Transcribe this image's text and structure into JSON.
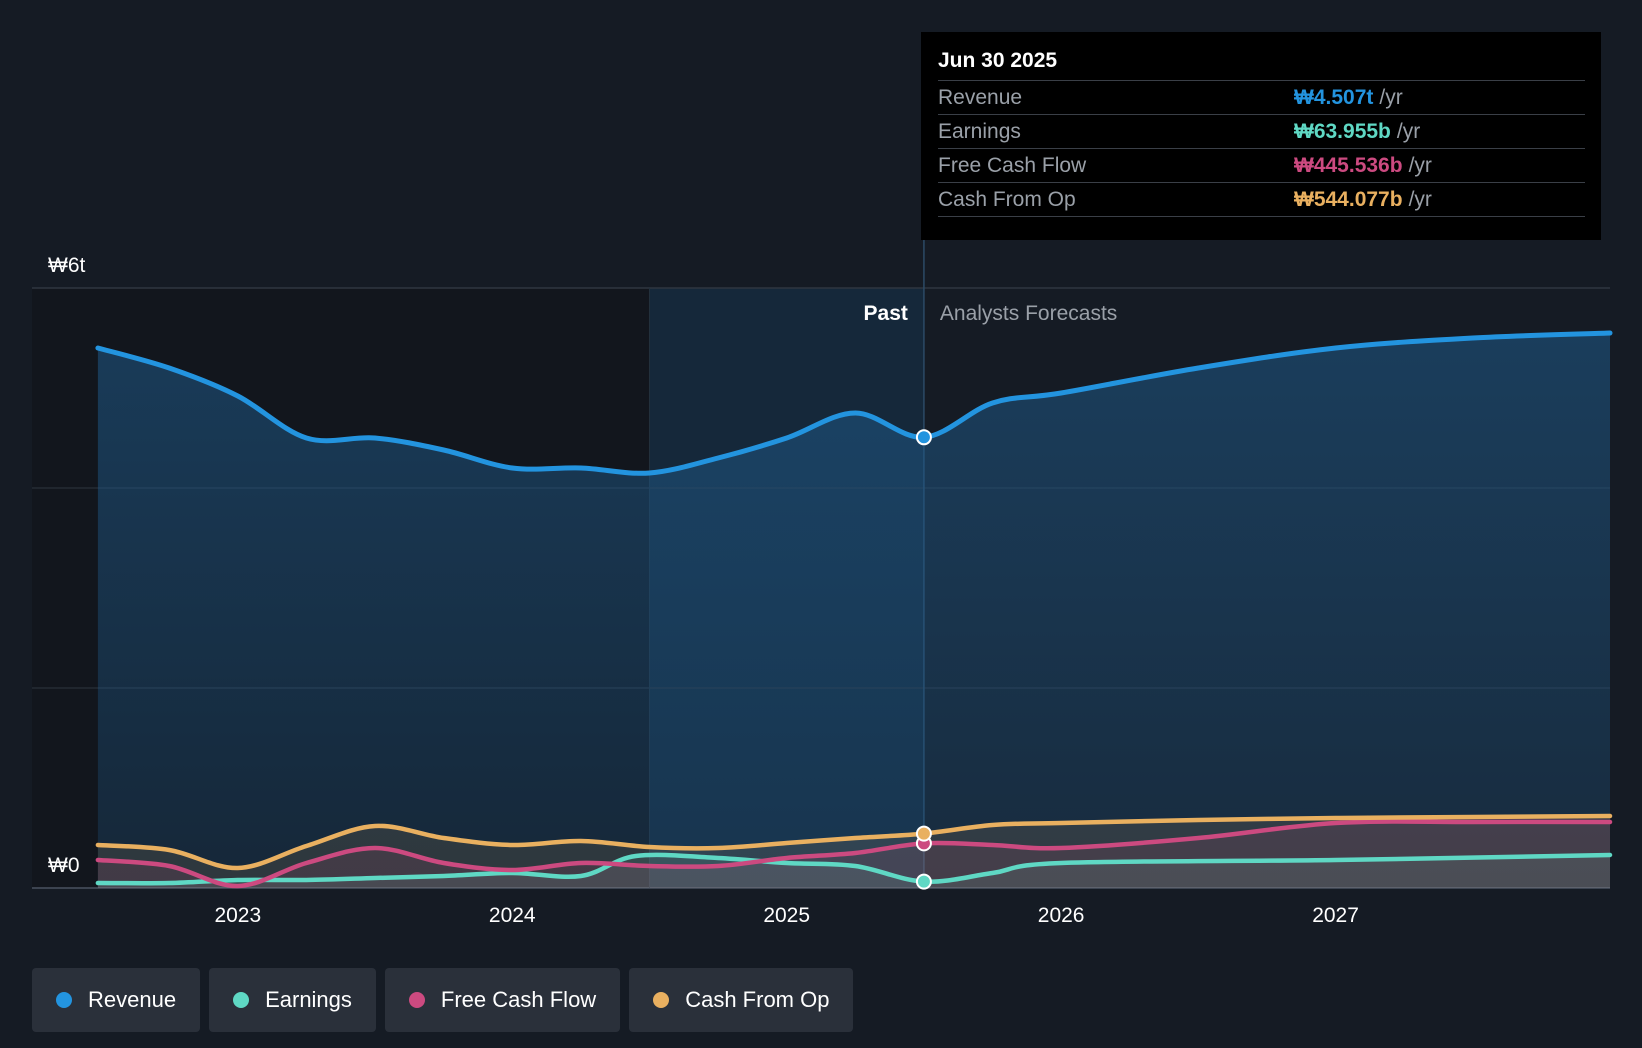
{
  "colors": {
    "revenue": "#2394df",
    "earnings": "#5fd8c4",
    "fcf": "#cc4a80",
    "cfo": "#e9b060"
  },
  "tooltip": {
    "date": "Jun 30 2025",
    "rows": [
      {
        "label": "Revenue",
        "value": "₩4.507t",
        "unit": "/yr"
      },
      {
        "label": "Earnings",
        "value": "₩63.955b",
        "unit": "/yr"
      },
      {
        "label": "Free Cash Flow",
        "value": "₩445.536b",
        "unit": "/yr"
      },
      {
        "label": "Cash From Op",
        "value": "₩544.077b",
        "unit": "/yr"
      }
    ]
  },
  "legend": [
    {
      "label": "Revenue"
    },
    {
      "label": "Earnings"
    },
    {
      "label": "Free Cash Flow"
    },
    {
      "label": "Cash From Op"
    }
  ],
  "chart_data": {
    "type": "line",
    "title": "",
    "y_unit": "₩ trillion",
    "ylim": [
      0,
      6
    ],
    "y_tick_labels": [
      {
        "value": 6,
        "label": "₩6t"
      },
      {
        "value": 0,
        "label": "₩0"
      }
    ],
    "x_range": [
      2022.25,
      2028.0
    ],
    "x_ticks": [
      2023,
      2024,
      2025,
      2026,
      2027
    ],
    "x_tick_labels": [
      "2023",
      "2024",
      "2025",
      "2026",
      "2027"
    ],
    "divider_x": 2025.5,
    "shade_start_x": 2024.5,
    "past_label": "Past",
    "forecast_label": "Analysts Forecasts",
    "series": [
      {
        "name": "Revenue",
        "key": "revenue",
        "points": [
          [
            2022.49,
            5.4
          ],
          [
            2022.75,
            5.2
          ],
          [
            2023.0,
            4.92
          ],
          [
            2023.25,
            4.5
          ],
          [
            2023.5,
            4.5
          ],
          [
            2023.75,
            4.38
          ],
          [
            2024.0,
            4.2
          ],
          [
            2024.25,
            4.2
          ],
          [
            2024.5,
            4.15
          ],
          [
            2024.75,
            4.3
          ],
          [
            2025.0,
            4.5
          ],
          [
            2025.25,
            4.75
          ],
          [
            2025.5,
            4.507
          ],
          [
            2025.75,
            4.85
          ],
          [
            2026.0,
            4.95
          ],
          [
            2026.5,
            5.2
          ],
          [
            2027.0,
            5.4
          ],
          [
            2027.5,
            5.5
          ],
          [
            2028.0,
            5.55
          ]
        ]
      },
      {
        "name": "Earnings",
        "key": "earnings",
        "points": [
          [
            2022.49,
            0.05
          ],
          [
            2022.75,
            0.05
          ],
          [
            2023.0,
            0.08
          ],
          [
            2023.25,
            0.08
          ],
          [
            2023.5,
            0.1
          ],
          [
            2023.75,
            0.12
          ],
          [
            2024.0,
            0.15
          ],
          [
            2024.25,
            0.12
          ],
          [
            2024.45,
            0.32
          ],
          [
            2024.75,
            0.3
          ],
          [
            2025.0,
            0.25
          ],
          [
            2025.25,
            0.22
          ],
          [
            2025.5,
            0.064
          ],
          [
            2025.75,
            0.15
          ],
          [
            2026.0,
            0.25
          ],
          [
            2027.0,
            0.28
          ],
          [
            2028.0,
            0.33
          ]
        ]
      },
      {
        "name": "Free Cash Flow",
        "key": "fcf",
        "points": [
          [
            2022.49,
            0.28
          ],
          [
            2022.75,
            0.22
          ],
          [
            2023.0,
            0.02
          ],
          [
            2023.25,
            0.25
          ],
          [
            2023.5,
            0.4
          ],
          [
            2023.75,
            0.25
          ],
          [
            2024.0,
            0.18
          ],
          [
            2024.25,
            0.25
          ],
          [
            2024.5,
            0.22
          ],
          [
            2024.75,
            0.22
          ],
          [
            2025.0,
            0.3
          ],
          [
            2025.25,
            0.35
          ],
          [
            2025.5,
            0.446
          ],
          [
            2025.75,
            0.43
          ],
          [
            2026.0,
            0.4
          ],
          [
            2026.5,
            0.5
          ],
          [
            2027.0,
            0.65
          ],
          [
            2027.5,
            0.66
          ],
          [
            2028.0,
            0.66
          ]
        ]
      },
      {
        "name": "Cash From Op",
        "key": "cfo",
        "points": [
          [
            2022.49,
            0.43
          ],
          [
            2022.75,
            0.38
          ],
          [
            2023.0,
            0.2
          ],
          [
            2023.25,
            0.42
          ],
          [
            2023.5,
            0.62
          ],
          [
            2023.75,
            0.5
          ],
          [
            2024.0,
            0.43
          ],
          [
            2024.25,
            0.47
          ],
          [
            2024.5,
            0.41
          ],
          [
            2024.75,
            0.4
          ],
          [
            2025.0,
            0.45
          ],
          [
            2025.25,
            0.5
          ],
          [
            2025.5,
            0.544
          ],
          [
            2025.75,
            0.63
          ],
          [
            2026.0,
            0.65
          ],
          [
            2026.5,
            0.68
          ],
          [
            2027.0,
            0.7
          ],
          [
            2027.5,
            0.71
          ],
          [
            2028.0,
            0.72
          ]
        ]
      }
    ]
  }
}
